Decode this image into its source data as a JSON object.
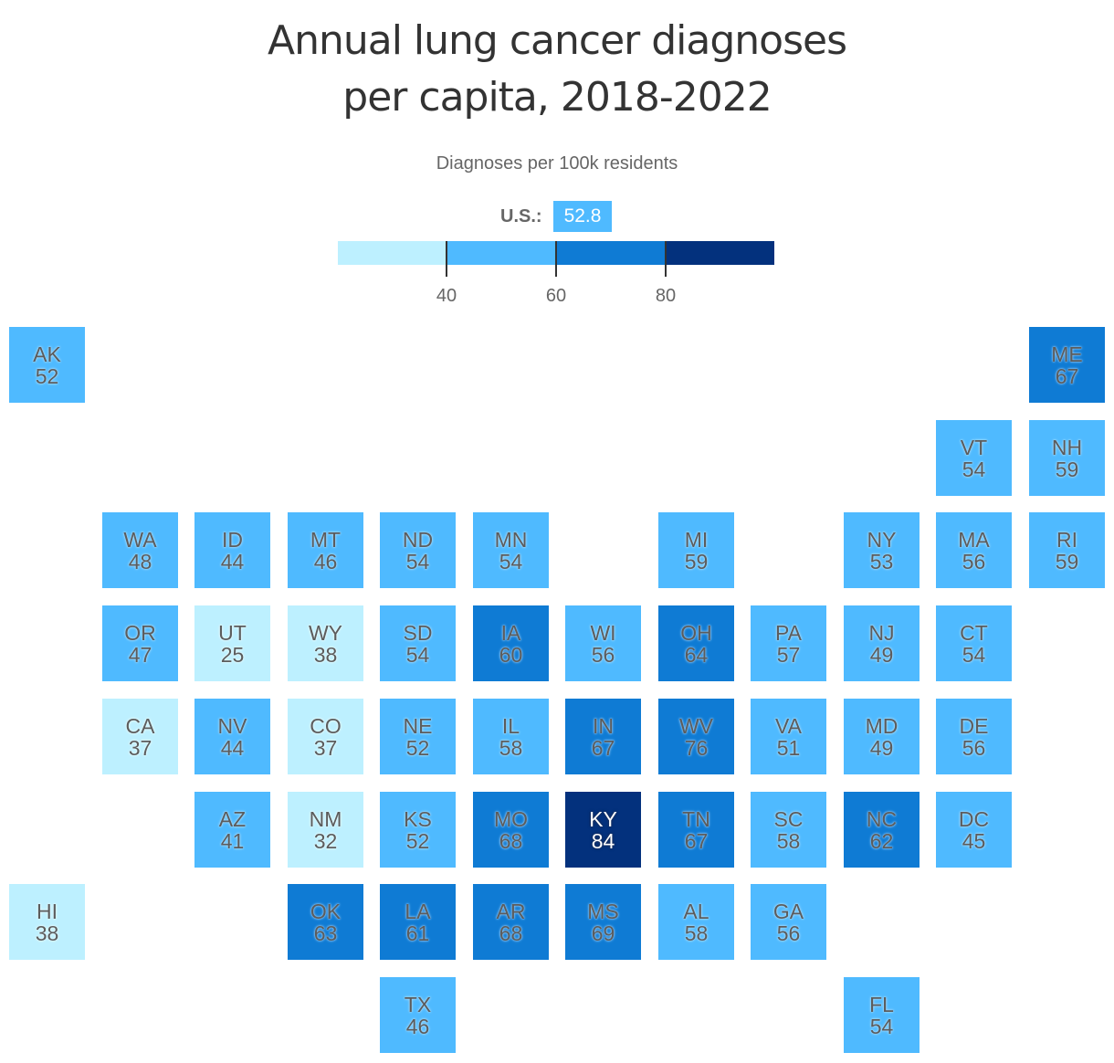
{
  "title": {
    "line1": "Annual lung cancer diagnoses",
    "line2": "per capita, 2018-2022"
  },
  "subtitle": "Diagnoses per 100k residents",
  "us_average": {
    "label": "U.S.:",
    "value": "52.8"
  },
  "legend": {
    "colors": [
      "#bdf0ff",
      "#4fbaff",
      "#0f7bd4",
      "#03317d"
    ],
    "ticks": [
      "40",
      "60",
      "80"
    ]
  },
  "chart_data": {
    "type": "tile-map",
    "title": "Annual lung cancer diagnoses per capita, 2018-2022",
    "subtitle": "Diagnoses per 100k residents",
    "us_average": 52.8,
    "bins": [
      {
        "range": "<40",
        "color": "#bdf0ff"
      },
      {
        "range": "40-60",
        "color": "#4fbaff"
      },
      {
        "range": "60-80",
        "color": "#0f7bd4"
      },
      {
        "range": ">=80",
        "color": "#03317d"
      }
    ],
    "states": [
      {
        "abbr": "AK",
        "value": 52,
        "col": 0,
        "row": 0
      },
      {
        "abbr": "ME",
        "value": 67,
        "col": 11,
        "row": 0
      },
      {
        "abbr": "VT",
        "value": 54,
        "col": 10,
        "row": 1
      },
      {
        "abbr": "NH",
        "value": 59,
        "col": 11,
        "row": 1
      },
      {
        "abbr": "WA",
        "value": 48,
        "col": 1,
        "row": 2
      },
      {
        "abbr": "ID",
        "value": 44,
        "col": 2,
        "row": 2
      },
      {
        "abbr": "MT",
        "value": 46,
        "col": 3,
        "row": 2
      },
      {
        "abbr": "ND",
        "value": 54,
        "col": 4,
        "row": 2
      },
      {
        "abbr": "MN",
        "value": 54,
        "col": 5,
        "row": 2
      },
      {
        "abbr": "MI",
        "value": 59,
        "col": 7,
        "row": 2
      },
      {
        "abbr": "NY",
        "value": 53,
        "col": 9,
        "row": 2
      },
      {
        "abbr": "MA",
        "value": 56,
        "col": 10,
        "row": 2
      },
      {
        "abbr": "RI",
        "value": 59,
        "col": 11,
        "row": 2
      },
      {
        "abbr": "OR",
        "value": 47,
        "col": 1,
        "row": 3
      },
      {
        "abbr": "UT",
        "value": 25,
        "col": 2,
        "row": 3
      },
      {
        "abbr": "WY",
        "value": 38,
        "col": 3,
        "row": 3
      },
      {
        "abbr": "SD",
        "value": 54,
        "col": 4,
        "row": 3
      },
      {
        "abbr": "IA",
        "value": 60,
        "col": 5,
        "row": 3
      },
      {
        "abbr": "WI",
        "value": 56,
        "col": 6,
        "row": 3
      },
      {
        "abbr": "OH",
        "value": 64,
        "col": 7,
        "row": 3
      },
      {
        "abbr": "PA",
        "value": 57,
        "col": 8,
        "row": 3
      },
      {
        "abbr": "NJ",
        "value": 49,
        "col": 9,
        "row": 3
      },
      {
        "abbr": "CT",
        "value": 54,
        "col": 10,
        "row": 3
      },
      {
        "abbr": "CA",
        "value": 37,
        "col": 1,
        "row": 4
      },
      {
        "abbr": "NV",
        "value": 44,
        "col": 2,
        "row": 4
      },
      {
        "abbr": "CO",
        "value": 37,
        "col": 3,
        "row": 4
      },
      {
        "abbr": "NE",
        "value": 52,
        "col": 4,
        "row": 4
      },
      {
        "abbr": "IL",
        "value": 58,
        "col": 5,
        "row": 4
      },
      {
        "abbr": "IN",
        "value": 67,
        "col": 6,
        "row": 4
      },
      {
        "abbr": "WV",
        "value": 76,
        "col": 7,
        "row": 4
      },
      {
        "abbr": "VA",
        "value": 51,
        "col": 8,
        "row": 4
      },
      {
        "abbr": "MD",
        "value": 49,
        "col": 9,
        "row": 4
      },
      {
        "abbr": "DE",
        "value": 56,
        "col": 10,
        "row": 4
      },
      {
        "abbr": "AZ",
        "value": 41,
        "col": 2,
        "row": 5
      },
      {
        "abbr": "NM",
        "value": 32,
        "col": 3,
        "row": 5
      },
      {
        "abbr": "KS",
        "value": 52,
        "col": 4,
        "row": 5
      },
      {
        "abbr": "MO",
        "value": 68,
        "col": 5,
        "row": 5
      },
      {
        "abbr": "KY",
        "value": 84,
        "col": 6,
        "row": 5
      },
      {
        "abbr": "TN",
        "value": 67,
        "col": 7,
        "row": 5
      },
      {
        "abbr": "SC",
        "value": 58,
        "col": 8,
        "row": 5
      },
      {
        "abbr": "NC",
        "value": 62,
        "col": 9,
        "row": 5
      },
      {
        "abbr": "DC",
        "value": 45,
        "col": 10,
        "row": 5
      },
      {
        "abbr": "HI",
        "value": 38,
        "col": 0,
        "row": 6
      },
      {
        "abbr": "OK",
        "value": 63,
        "col": 3,
        "row": 6
      },
      {
        "abbr": "LA",
        "value": 61,
        "col": 4,
        "row": 6
      },
      {
        "abbr": "AR",
        "value": 68,
        "col": 5,
        "row": 6
      },
      {
        "abbr": "MS",
        "value": 69,
        "col": 6,
        "row": 6
      },
      {
        "abbr": "AL",
        "value": 58,
        "col": 7,
        "row": 6
      },
      {
        "abbr": "GA",
        "value": 56,
        "col": 8,
        "row": 6
      },
      {
        "abbr": "TX",
        "value": 46,
        "col": 4,
        "row": 7
      },
      {
        "abbr": "FL",
        "value": 54,
        "col": 9,
        "row": 7
      }
    ]
  }
}
